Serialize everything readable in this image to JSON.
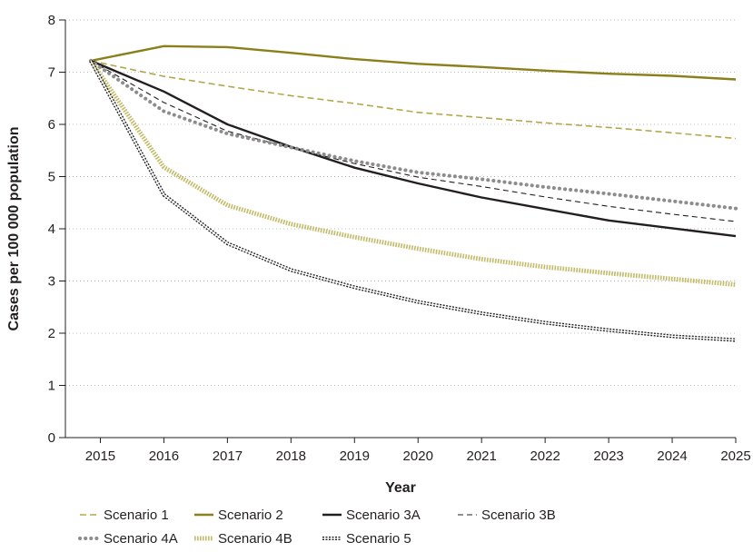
{
  "chart_data": {
    "type": "line",
    "title": "",
    "xlabel": "Year",
    "ylabel": "Cases per 100 000 population",
    "x": [
      2015,
      2016,
      2017,
      2018,
      2019,
      2020,
      2021,
      2022,
      2023,
      2024,
      2025
    ],
    "x_ticks": [
      "2015",
      "2016",
      "2017",
      "2018",
      "2019",
      "2020",
      "2021",
      "2022",
      "2023",
      "2024",
      "2025"
    ],
    "y_ticks": [
      "0",
      "1",
      "2",
      "3",
      "4",
      "5",
      "6",
      "7",
      "8"
    ],
    "xlim": [
      2014.45,
      2025
    ],
    "ylim": [
      0,
      8
    ],
    "grid": "horizontal dotted",
    "legend_position": "bottom",
    "series": [
      {
        "name": "Scenario 1",
        "color": "#b3a74a",
        "style": "dashed",
        "points": [
          [
            2014.85,
            7.22
          ],
          [
            2016,
            6.92
          ],
          [
            2017,
            6.73
          ],
          [
            2018,
            6.55
          ],
          [
            2019,
            6.4
          ],
          [
            2020,
            6.23
          ],
          [
            2021,
            6.13
          ],
          [
            2022,
            6.03
          ],
          [
            2023,
            5.94
          ],
          [
            2024,
            5.84
          ],
          [
            2025,
            5.73
          ]
        ]
      },
      {
        "name": "Scenario 2",
        "color": "#8a7f1a",
        "style": "solid",
        "points": [
          [
            2014.85,
            7.22
          ],
          [
            2016,
            7.5
          ],
          [
            2017,
            7.48
          ],
          [
            2018,
            7.37
          ],
          [
            2019,
            7.25
          ],
          [
            2020,
            7.16
          ],
          [
            2021,
            7.1
          ],
          [
            2022,
            7.03
          ],
          [
            2023,
            6.97
          ],
          [
            2024,
            6.93
          ],
          [
            2025,
            6.86
          ]
        ]
      },
      {
        "name": "Scenario 3A",
        "color": "#231f20",
        "style": "solid",
        "points": [
          [
            2014.85,
            7.22
          ],
          [
            2016,
            6.63
          ],
          [
            2017,
            6.0
          ],
          [
            2018,
            5.57
          ],
          [
            2019,
            5.17
          ],
          [
            2020,
            4.87
          ],
          [
            2021,
            4.6
          ],
          [
            2022,
            4.38
          ],
          [
            2023,
            4.16
          ],
          [
            2024,
            4.01
          ],
          [
            2025,
            3.86
          ]
        ]
      },
      {
        "name": "Scenario 3B",
        "color": "#231f20",
        "style": "thin-dashed",
        "points": [
          [
            2014.85,
            7.22
          ],
          [
            2016,
            6.42
          ],
          [
            2017,
            5.87
          ],
          [
            2018,
            5.55
          ],
          [
            2019,
            5.25
          ],
          [
            2020,
            4.99
          ],
          [
            2021,
            4.81
          ],
          [
            2022,
            4.61
          ],
          [
            2023,
            4.43
          ],
          [
            2024,
            4.28
          ],
          [
            2025,
            4.14
          ]
        ]
      },
      {
        "name": "Scenario 4A",
        "color": "#8c8c8c",
        "style": "dotted",
        "points": [
          [
            2014.85,
            7.22
          ],
          [
            2016,
            6.25
          ],
          [
            2017,
            5.82
          ],
          [
            2018,
            5.56
          ],
          [
            2019,
            5.3
          ],
          [
            2020,
            5.08
          ],
          [
            2021,
            4.95
          ],
          [
            2022,
            4.8
          ],
          [
            2023,
            4.67
          ],
          [
            2024,
            4.53
          ],
          [
            2025,
            4.39
          ]
        ]
      },
      {
        "name": "Scenario 4B",
        "color": "#c2bb68",
        "style": "hatched",
        "points": [
          [
            2014.85,
            7.22
          ],
          [
            2016,
            5.18
          ],
          [
            2017,
            4.45
          ],
          [
            2018,
            4.09
          ],
          [
            2019,
            3.84
          ],
          [
            2020,
            3.62
          ],
          [
            2021,
            3.42
          ],
          [
            2022,
            3.27
          ],
          [
            2023,
            3.15
          ],
          [
            2024,
            3.04
          ],
          [
            2025,
            2.93
          ]
        ]
      },
      {
        "name": "Scenario 5",
        "color": "#231f20",
        "style": "chain",
        "points": [
          [
            2014.85,
            7.22
          ],
          [
            2016,
            4.65
          ],
          [
            2017,
            3.72
          ],
          [
            2018,
            3.21
          ],
          [
            2019,
            2.88
          ],
          [
            2020,
            2.6
          ],
          [
            2021,
            2.38
          ],
          [
            2022,
            2.2
          ],
          [
            2023,
            2.06
          ],
          [
            2024,
            1.94
          ],
          [
            2025,
            1.87
          ]
        ]
      }
    ]
  }
}
